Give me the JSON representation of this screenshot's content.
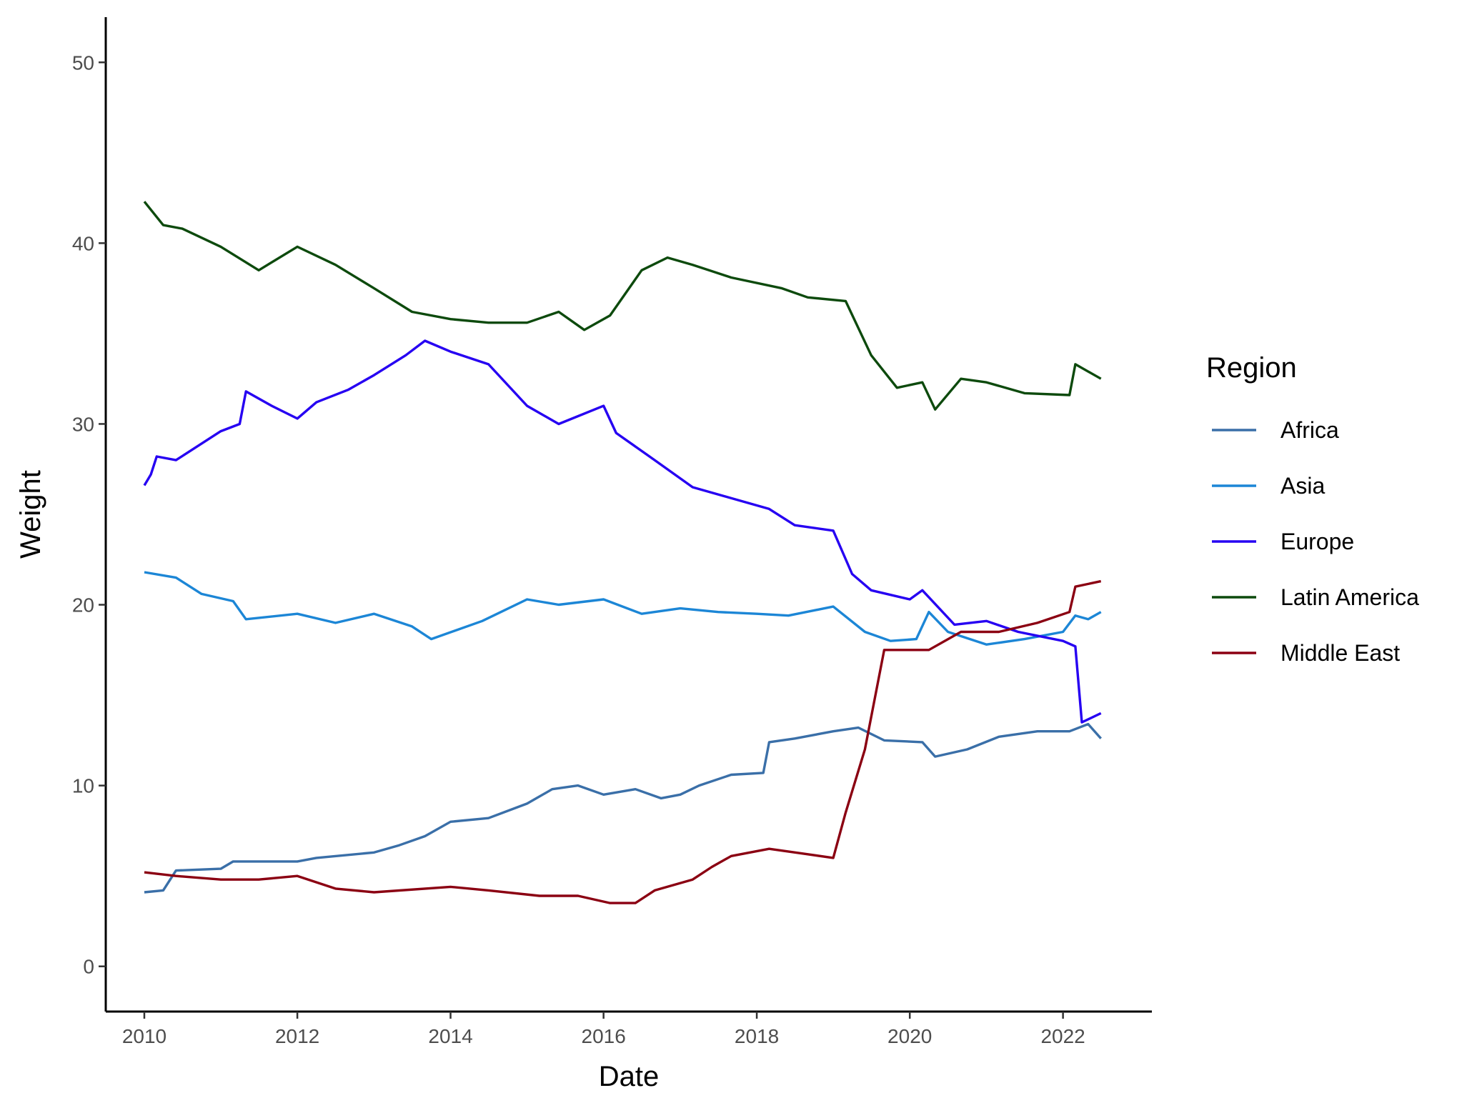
{
  "chart_data": {
    "type": "line",
    "xlabel": "Date",
    "ylabel": "Weight",
    "xlim": [
      "2009-07-01",
      "2023-03-01"
    ],
    "ylim": [
      -2.5,
      52.5
    ],
    "x_ticks": [
      "2010",
      "2012",
      "2014",
      "2016",
      "2018",
      "2020",
      "2022"
    ],
    "y_ticks": [
      "0",
      "10",
      "20",
      "30",
      "40",
      "50"
    ],
    "grid": false,
    "legend": {
      "title": "Region",
      "position": "right"
    },
    "series": [
      {
        "name": "Africa",
        "color": "#3a6fa8",
        "points": [
          [
            "2010-01-01",
            4.1
          ],
          [
            "2010-04-01",
            4.2
          ],
          [
            "2010-06-01",
            5.3
          ],
          [
            "2011-01-01",
            5.4
          ],
          [
            "2011-03-01",
            5.8
          ],
          [
            "2012-01-01",
            5.8
          ],
          [
            "2012-04-01",
            6.0
          ],
          [
            "2013-01-01",
            6.3
          ],
          [
            "2013-05-01",
            6.7
          ],
          [
            "2013-09-01",
            7.2
          ],
          [
            "2014-01-01",
            8.0
          ],
          [
            "2014-07-01",
            8.2
          ],
          [
            "2015-01-01",
            9.0
          ],
          [
            "2015-05-01",
            9.8
          ],
          [
            "2015-09-01",
            10.0
          ],
          [
            "2016-01-01",
            9.5
          ],
          [
            "2016-06-01",
            9.8
          ],
          [
            "2016-10-01",
            9.3
          ],
          [
            "2017-01-01",
            9.5
          ],
          [
            "2017-04-01",
            10.0
          ],
          [
            "2017-09-01",
            10.6
          ],
          [
            "2018-02-01",
            10.7
          ],
          [
            "2018-03-01",
            12.4
          ],
          [
            "2018-07-01",
            12.6
          ],
          [
            "2019-01-01",
            13.0
          ],
          [
            "2019-05-01",
            13.2
          ],
          [
            "2019-09-01",
            12.5
          ],
          [
            "2020-03-01",
            12.4
          ],
          [
            "2020-05-01",
            11.6
          ],
          [
            "2020-10-01",
            12.0
          ],
          [
            "2021-03-01",
            12.7
          ],
          [
            "2021-09-01",
            13.0
          ],
          [
            "2022-02-01",
            13.0
          ],
          [
            "2022-05-01",
            13.4
          ],
          [
            "2022-07-01",
            12.6
          ]
        ]
      },
      {
        "name": "Asia",
        "color": "#1c86d6",
        "points": [
          [
            "2010-01-01",
            21.8
          ],
          [
            "2010-06-01",
            21.5
          ],
          [
            "2010-10-01",
            20.6
          ],
          [
            "2011-03-01",
            20.2
          ],
          [
            "2011-05-01",
            19.2
          ],
          [
            "2012-01-01",
            19.5
          ],
          [
            "2012-07-01",
            19.0
          ],
          [
            "2013-01-01",
            19.5
          ],
          [
            "2013-07-01",
            18.8
          ],
          [
            "2013-10-01",
            18.1
          ],
          [
            "2014-06-01",
            19.1
          ],
          [
            "2015-01-01",
            20.3
          ],
          [
            "2015-06-01",
            20.0
          ],
          [
            "2016-01-01",
            20.3
          ],
          [
            "2016-07-01",
            19.5
          ],
          [
            "2017-01-01",
            19.8
          ],
          [
            "2017-07-01",
            19.6
          ],
          [
            "2018-01-01",
            19.5
          ],
          [
            "2018-06-01",
            19.4
          ],
          [
            "2019-01-01",
            19.9
          ],
          [
            "2019-06-01",
            18.5
          ],
          [
            "2019-10-01",
            18.0
          ],
          [
            "2020-02-01",
            18.1
          ],
          [
            "2020-04-01",
            19.6
          ],
          [
            "2020-07-01",
            18.5
          ],
          [
            "2021-01-01",
            17.8
          ],
          [
            "2021-07-01",
            18.1
          ],
          [
            "2022-01-01",
            18.5
          ],
          [
            "2022-03-01",
            19.4
          ],
          [
            "2022-05-01",
            19.2
          ],
          [
            "2022-07-01",
            19.6
          ]
        ]
      },
      {
        "name": "Europe",
        "color": "#2600f2",
        "points": [
          [
            "2010-01-01",
            26.6
          ],
          [
            "2010-02-01",
            27.2
          ],
          [
            "2010-03-01",
            28.2
          ],
          [
            "2010-06-01",
            28.0
          ],
          [
            "2011-01-01",
            29.6
          ],
          [
            "2011-04-01",
            30.0
          ],
          [
            "2011-05-01",
            31.8
          ],
          [
            "2011-09-01",
            31.0
          ],
          [
            "2012-01-01",
            30.3
          ],
          [
            "2012-04-01",
            31.2
          ],
          [
            "2012-09-01",
            31.9
          ],
          [
            "2013-01-01",
            32.7
          ],
          [
            "2013-06-01",
            33.8
          ],
          [
            "2013-09-01",
            34.6
          ],
          [
            "2014-01-01",
            34.0
          ],
          [
            "2014-07-01",
            33.3
          ],
          [
            "2015-01-01",
            31.0
          ],
          [
            "2015-06-01",
            30.0
          ],
          [
            "2016-01-01",
            31.0
          ],
          [
            "2016-03-01",
            29.5
          ],
          [
            "2016-09-01",
            28.0
          ],
          [
            "2017-03-01",
            26.5
          ],
          [
            "2017-08-01",
            26.0
          ],
          [
            "2018-03-01",
            25.3
          ],
          [
            "2018-07-01",
            24.4
          ],
          [
            "2019-01-01",
            24.1
          ],
          [
            "2019-04-01",
            21.7
          ],
          [
            "2019-07-01",
            20.8
          ],
          [
            "2020-01-01",
            20.3
          ],
          [
            "2020-03-01",
            20.8
          ],
          [
            "2020-08-01",
            18.9
          ],
          [
            "2021-01-01",
            19.1
          ],
          [
            "2021-06-01",
            18.5
          ],
          [
            "2022-01-01",
            18.0
          ],
          [
            "2022-03-01",
            17.7
          ],
          [
            "2022-04-01",
            13.5
          ],
          [
            "2022-07-01",
            14.0
          ]
        ]
      },
      {
        "name": "Latin America",
        "color": "#0d4a0d",
        "points": [
          [
            "2010-01-01",
            42.3
          ],
          [
            "2010-04-01",
            41.0
          ],
          [
            "2010-07-01",
            40.8
          ],
          [
            "2011-01-01",
            39.8
          ],
          [
            "2011-07-01",
            38.5
          ],
          [
            "2012-01-01",
            39.8
          ],
          [
            "2012-07-01",
            38.8
          ],
          [
            "2013-01-01",
            37.5
          ],
          [
            "2013-07-01",
            36.2
          ],
          [
            "2014-01-01",
            35.8
          ],
          [
            "2014-07-01",
            35.6
          ],
          [
            "2015-01-01",
            35.6
          ],
          [
            "2015-06-01",
            36.2
          ],
          [
            "2015-10-01",
            35.2
          ],
          [
            "2016-02-01",
            36.0
          ],
          [
            "2016-07-01",
            38.5
          ],
          [
            "2016-11-01",
            39.2
          ],
          [
            "2017-03-01",
            38.8
          ],
          [
            "2017-09-01",
            38.1
          ],
          [
            "2018-05-01",
            37.5
          ],
          [
            "2018-09-01",
            37.0
          ],
          [
            "2019-03-01",
            36.8
          ],
          [
            "2019-07-01",
            33.8
          ],
          [
            "2019-11-01",
            32.0
          ],
          [
            "2020-03-01",
            32.3
          ],
          [
            "2020-05-01",
            30.8
          ],
          [
            "2020-09-01",
            32.5
          ],
          [
            "2021-01-01",
            32.3
          ],
          [
            "2021-07-01",
            31.7
          ],
          [
            "2022-02-01",
            31.6
          ],
          [
            "2022-03-01",
            33.3
          ],
          [
            "2022-07-01",
            32.5
          ]
        ]
      },
      {
        "name": "Middle East",
        "color": "#8b0012",
        "points": [
          [
            "2010-01-01",
            5.2
          ],
          [
            "2010-06-01",
            5.0
          ],
          [
            "2011-01-01",
            4.8
          ],
          [
            "2011-07-01",
            4.8
          ],
          [
            "2012-01-01",
            5.0
          ],
          [
            "2012-07-01",
            4.3
          ],
          [
            "2013-01-01",
            4.1
          ],
          [
            "2014-01-01",
            4.4
          ],
          [
            "2014-07-01",
            4.2
          ],
          [
            "2015-03-01",
            3.9
          ],
          [
            "2015-09-01",
            3.9
          ],
          [
            "2016-02-01",
            3.5
          ],
          [
            "2016-06-01",
            3.5
          ],
          [
            "2016-09-01",
            4.2
          ],
          [
            "2017-03-01",
            4.8
          ],
          [
            "2017-06-01",
            5.5
          ],
          [
            "2017-09-01",
            6.1
          ],
          [
            "2018-03-01",
            6.5
          ],
          [
            "2018-09-01",
            6.2
          ],
          [
            "2019-01-01",
            6.0
          ],
          [
            "2019-03-01",
            8.5
          ],
          [
            "2019-06-01",
            12.0
          ],
          [
            "2019-09-01",
            17.5
          ],
          [
            "2020-01-01",
            17.5
          ],
          [
            "2020-04-01",
            17.5
          ],
          [
            "2020-09-01",
            18.5
          ],
          [
            "2021-03-01",
            18.5
          ],
          [
            "2021-09-01",
            19.0
          ],
          [
            "2022-02-01",
            19.6
          ],
          [
            "2022-03-01",
            21.0
          ],
          [
            "2022-07-01",
            21.3
          ]
        ]
      }
    ]
  }
}
